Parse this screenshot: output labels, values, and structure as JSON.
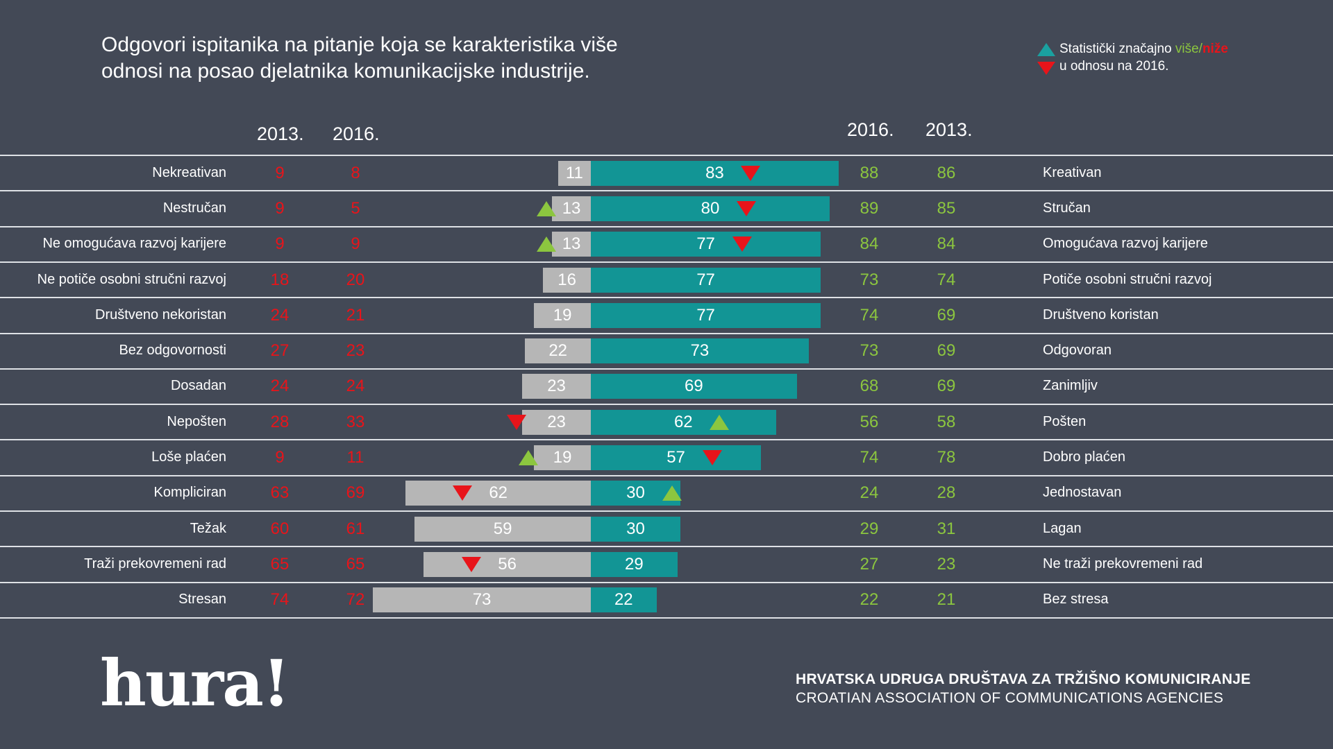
{
  "title": "Odgovori ispitanika na pitanje koja se karakteristika više odnosi na posao djelatnika komunikacijske industrije.",
  "legend": {
    "line1_prefix": "Statistički značajno ",
    "line1_up": "više",
    "line1_sep": "/",
    "line1_down": "niže",
    "line2": "u odnosu na 2016."
  },
  "headers": {
    "left_2013": "2013.",
    "left_2016": "2016.",
    "right_2016": "2016.",
    "right_2013": "2013."
  },
  "colors": {
    "background": "#434956",
    "negative_bar": "#b6b6b6",
    "positive_bar": "#129595",
    "negative_numbers": "#e8141a",
    "positive_numbers": "#8cc63f",
    "marker_up": "#8cc63f",
    "marker_down": "#e8141a"
  },
  "chart_data": {
    "type": "bar",
    "orientation": "horizontal-diverging",
    "rows": [
      {
        "left_label": "Nekreativan",
        "right_label": "Kreativan",
        "neg_2013": 9,
        "neg_2016": 8,
        "neg_bar": 11,
        "pos_bar": 83,
        "pos_2016": 88,
        "pos_2013": 86,
        "neg_marker": null,
        "pos_marker": "down"
      },
      {
        "left_label": "Nestručan",
        "right_label": "Stručan",
        "neg_2013": 9,
        "neg_2016": 5,
        "neg_bar": 13,
        "pos_bar": 80,
        "pos_2016": 89,
        "pos_2013": 85,
        "neg_marker": "up",
        "pos_marker": "down"
      },
      {
        "left_label": "Ne omogućava razvoj karijere",
        "right_label": "Omogućava razvoj karijere",
        "neg_2013": 9,
        "neg_2016": 9,
        "neg_bar": 13,
        "pos_bar": 77,
        "pos_2016": 84,
        "pos_2013": 84,
        "neg_marker": "up",
        "pos_marker": "down"
      },
      {
        "left_label": "Ne potiče osobni stručni razvoj",
        "right_label": "Potiče osobni stručni razvoj",
        "neg_2013": 18,
        "neg_2016": 20,
        "neg_bar": 16,
        "pos_bar": 77,
        "pos_2016": 73,
        "pos_2013": 74,
        "neg_marker": null,
        "pos_marker": null
      },
      {
        "left_label": "Društveno nekoristan",
        "right_label": "Društveno koristan",
        "neg_2013": 24,
        "neg_2016": 21,
        "neg_bar": 19,
        "pos_bar": 77,
        "pos_2016": 74,
        "pos_2013": 69,
        "neg_marker": null,
        "pos_marker": null
      },
      {
        "left_label": "Bez odgovornosti",
        "right_label": "Odgovoran",
        "neg_2013": 27,
        "neg_2016": 23,
        "neg_bar": 22,
        "pos_bar": 73,
        "pos_2016": 73,
        "pos_2013": 69,
        "neg_marker": null,
        "pos_marker": null
      },
      {
        "left_label": "Dosadan",
        "right_label": "Zanimljiv",
        "neg_2013": 24,
        "neg_2016": 24,
        "neg_bar": 23,
        "pos_bar": 69,
        "pos_2016": 68,
        "pos_2013": 69,
        "neg_marker": null,
        "pos_marker": null
      },
      {
        "left_label": "Nepošten",
        "right_label": "Pošten",
        "neg_2013": 28,
        "neg_2016": 33,
        "neg_bar": 23,
        "pos_bar": 62,
        "pos_2016": 56,
        "pos_2013": 58,
        "neg_marker": "down",
        "pos_marker": "up"
      },
      {
        "left_label": "Loše plaćen",
        "right_label": "Dobro plaćen",
        "neg_2013": 9,
        "neg_2016": 11,
        "neg_bar": 19,
        "pos_bar": 57,
        "pos_2016": 74,
        "pos_2013": 78,
        "neg_marker": "up",
        "pos_marker": "down"
      },
      {
        "left_label": "Kompliciran",
        "right_label": "Jednostavan",
        "neg_2013": 63,
        "neg_2016": 69,
        "neg_bar": 62,
        "pos_bar": 30,
        "pos_2016": 24,
        "pos_2013": 28,
        "neg_marker": "down",
        "pos_marker": "up"
      },
      {
        "left_label": "Težak",
        "right_label": "Lagan",
        "neg_2013": 60,
        "neg_2016": 61,
        "neg_bar": 59,
        "pos_bar": 30,
        "pos_2016": 29,
        "pos_2013": 31,
        "neg_marker": null,
        "pos_marker": null
      },
      {
        "left_label": "Traži prekovremeni rad",
        "right_label": "Ne traži prekovremeni rad",
        "neg_2013": 65,
        "neg_2016": 65,
        "neg_bar": 56,
        "pos_bar": 29,
        "pos_2016": 27,
        "pos_2013": 23,
        "neg_marker": "down",
        "pos_marker": null
      },
      {
        "left_label": "Stresan",
        "right_label": "Bez stresa",
        "neg_2013": 74,
        "neg_2016": 72,
        "neg_bar": 73,
        "pos_bar": 22,
        "pos_2016": 22,
        "pos_2013": 21,
        "neg_marker": null,
        "pos_marker": null
      }
    ]
  },
  "footer": {
    "logo": "hura!",
    "org_line1": "HRVATSKA UDRUGA DRUŠTAVA ZA TRŽIŠNO KOMUNICIRANJE",
    "org_line2": "CROATIAN ASSOCIATION OF COMMUNICATIONS AGENCIES"
  }
}
